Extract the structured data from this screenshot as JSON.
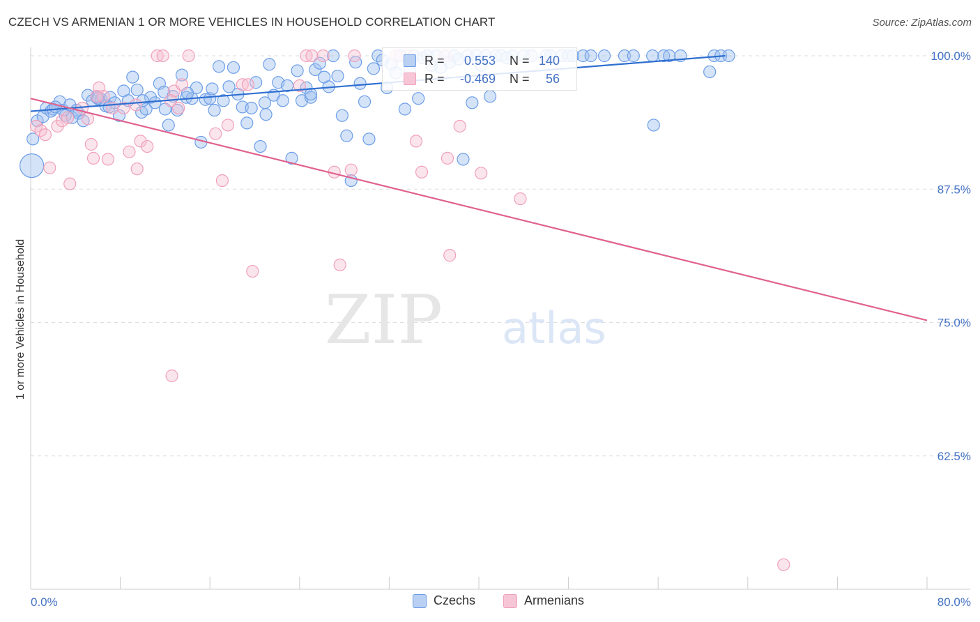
{
  "title": "CZECH VS ARMENIAN 1 OR MORE VEHICLES IN HOUSEHOLD CORRELATION CHART",
  "source": "Source: ZipAtlas.com",
  "watermark": {
    "zip": "ZIP",
    "atlas": "atlas"
  },
  "stats": [
    {
      "r_label": "R =",
      "r_value": "0.553",
      "n_label": "N =",
      "n_value": "140"
    },
    {
      "r_label": "R =",
      "r_value": "-0.469",
      "n_label": "N =",
      "n_value": "56"
    }
  ],
  "legend": [
    {
      "label": "Czechs"
    },
    {
      "label": "Armenians"
    }
  ],
  "chart_data": {
    "type": "scatter",
    "title": "CZECH VS ARMENIAN 1 OR MORE VEHICLES IN HOUSEHOLD CORRELATION CHART",
    "xlabel": "",
    "ylabel": "1 or more Vehicles in Household",
    "xlim": [
      0,
      80
    ],
    "ylim": [
      50,
      100
    ],
    "x_tick_labels": [
      "0.0%",
      "80.0%"
    ],
    "y_ticks": [
      62.5,
      75.0,
      87.5,
      100.0
    ],
    "y_tick_labels": [
      "62.5%",
      "75.0%",
      "87.5%",
      "100.0%"
    ],
    "grid": true,
    "legend_position": "bottom",
    "colors": {
      "czechs": "#6d9ee8",
      "armenians": "#f0a0bb",
      "czech_line": "#2f6fd0",
      "armenian_line": "#e0618f",
      "tick_label": "#4472c4"
    },
    "series": [
      {
        "name": "Czechs",
        "trend": [
          [
            0,
            94.8
          ],
          [
            62,
            100.0
          ]
        ],
        "points": [
          [
            0.6,
            93.9
          ],
          [
            1.1,
            94.3
          ],
          [
            1.4,
            95.1
          ],
          [
            1.8,
            94.8
          ],
          [
            2.0,
            95.0
          ],
          [
            2.6,
            95.7
          ],
          [
            2.9,
            94.9
          ],
          [
            3.1,
            94.4
          ],
          [
            3.5,
            95.4
          ],
          [
            3.7,
            94.2
          ],
          [
            4.1,
            94.9
          ],
          [
            4.3,
            94.6
          ],
          [
            4.7,
            93.9
          ],
          [
            5.1,
            96.3
          ],
          [
            5.5,
            95.8
          ],
          [
            5.9,
            96.1
          ],
          [
            6.3,
            95.9
          ],
          [
            6.7,
            95.3
          ],
          [
            7.1,
            96.1
          ],
          [
            7.5,
            95.6
          ],
          [
            7.9,
            94.4
          ],
          [
            8.3,
            96.7
          ],
          [
            8.7,
            95.8
          ],
          [
            9.1,
            98.0
          ],
          [
            9.5,
            96.8
          ],
          [
            9.9,
            94.7
          ],
          [
            10.3,
            95.0
          ],
          [
            10.7,
            96.1
          ],
          [
            11.1,
            95.6
          ],
          [
            11.5,
            97.4
          ],
          [
            11.9,
            96.6
          ],
          [
            12.3,
            93.5
          ],
          [
            12.7,
            96.2
          ],
          [
            13.1,
            94.9
          ],
          [
            13.5,
            98.2
          ],
          [
            13.9,
            96.1
          ],
          [
            14.4,
            96.0
          ],
          [
            14.8,
            97.0
          ],
          [
            15.2,
            91.9
          ],
          [
            15.6,
            95.9
          ],
          [
            16.0,
            96.0
          ],
          [
            16.4,
            94.9
          ],
          [
            16.8,
            99.0
          ],
          [
            17.2,
            95.8
          ],
          [
            17.7,
            97.1
          ],
          [
            18.1,
            98.9
          ],
          [
            18.5,
            96.4
          ],
          [
            18.9,
            95.2
          ],
          [
            19.3,
            93.7
          ],
          [
            19.7,
            95.1
          ],
          [
            20.1,
            97.5
          ],
          [
            20.5,
            91.5
          ],
          [
            20.9,
            95.6
          ],
          [
            21.3,
            99.2
          ],
          [
            21.7,
            96.3
          ],
          [
            22.1,
            97.5
          ],
          [
            22.5,
            95.8
          ],
          [
            22.9,
            97.2
          ],
          [
            23.3,
            90.4
          ],
          [
            23.8,
            98.6
          ],
          [
            24.2,
            95.8
          ],
          [
            24.6,
            97.0
          ],
          [
            25.0,
            96.1
          ],
          [
            25.4,
            98.7
          ],
          [
            25.8,
            99.3
          ],
          [
            26.2,
            98.0
          ],
          [
            26.6,
            97.1
          ],
          [
            27.0,
            100.0
          ],
          [
            27.4,
            98.1
          ],
          [
            27.8,
            94.4
          ],
          [
            28.2,
            92.5
          ],
          [
            28.6,
            88.3
          ],
          [
            29.0,
            99.4
          ],
          [
            29.4,
            97.4
          ],
          [
            29.8,
            95.7
          ],
          [
            30.2,
            92.2
          ],
          [
            30.6,
            98.8
          ],
          [
            31.0,
            100.0
          ],
          [
            31.4,
            99.6
          ],
          [
            31.8,
            97.0
          ],
          [
            32.2,
            99.2
          ],
          [
            32.6,
            98.4
          ],
          [
            33.0,
            100.0
          ],
          [
            33.4,
            95.0
          ],
          [
            33.8,
            98.6
          ],
          [
            34.2,
            100.0
          ],
          [
            34.6,
            96.0
          ],
          [
            35.0,
            99.8
          ],
          [
            35.4,
            100.0
          ],
          [
            35.8,
            99.1
          ],
          [
            36.2,
            100.0
          ],
          [
            36.6,
            98.9
          ],
          [
            37.0,
            100.0
          ],
          [
            37.4,
            99.4
          ],
          [
            37.8,
            100.0
          ],
          [
            38.2,
            99.7
          ],
          [
            38.6,
            90.3
          ],
          [
            39.0,
            100.0
          ],
          [
            39.4,
            95.6
          ],
          [
            39.8,
            100.0
          ],
          [
            40.2,
            99.1
          ],
          [
            40.6,
            100.0
          ],
          [
            41.0,
            96.2
          ],
          [
            41.5,
            100.0
          ],
          [
            42.0,
            100.0
          ],
          [
            42.5,
            99.8
          ],
          [
            43.0,
            100.0
          ],
          [
            44.0,
            100.0
          ],
          [
            44.7,
            100.0
          ],
          [
            46.0,
            100.0
          ],
          [
            46.4,
            100.0
          ],
          [
            47.4,
            100.0
          ],
          [
            48.0,
            100.0
          ],
          [
            48.4,
            100.0
          ],
          [
            49.3,
            100.0
          ],
          [
            50.0,
            100.0
          ],
          [
            51.2,
            100.0
          ],
          [
            53.0,
            100.0
          ],
          [
            53.8,
            100.0
          ],
          [
            55.5,
            100.0
          ],
          [
            56.5,
            100.0
          ],
          [
            57.0,
            100.0
          ],
          [
            58.0,
            100.0
          ],
          [
            61.0,
            100.0
          ],
          [
            61.6,
            100.0
          ],
          [
            62.3,
            100.0
          ],
          [
            60.6,
            98.5
          ],
          [
            55.6,
            93.5
          ],
          [
            25.0,
            96.4
          ],
          [
            21.0,
            94.5
          ],
          [
            16.2,
            96.9
          ],
          [
            14.0,
            96.5
          ],
          [
            12.0,
            95.0
          ],
          [
            10.0,
            95.8
          ],
          [
            7.0,
            95.2
          ],
          [
            6.0,
            96.0
          ],
          [
            2.2,
            95.2
          ],
          [
            0.2,
            92.2
          ],
          [
            0.1,
            89.7
          ]
        ]
      },
      {
        "name": "Armenians",
        "trend": [
          [
            0,
            96.0
          ],
          [
            80,
            75.2
          ]
        ],
        "points": [
          [
            0.5,
            93.4
          ],
          [
            0.9,
            93.0
          ],
          [
            1.3,
            92.6
          ],
          [
            1.7,
            89.5
          ],
          [
            2.4,
            93.4
          ],
          [
            2.8,
            93.9
          ],
          [
            3.3,
            94.2
          ],
          [
            3.5,
            88.0
          ],
          [
            4.6,
            95.1
          ],
          [
            5.1,
            94.1
          ],
          [
            5.4,
            91.7
          ],
          [
            5.6,
            90.4
          ],
          [
            6.1,
            97.0
          ],
          [
            6.5,
            96.2
          ],
          [
            6.9,
            90.3
          ],
          [
            7.3,
            95.1
          ],
          [
            8.3,
            95.1
          ],
          [
            8.8,
            91.0
          ],
          [
            9.5,
            89.4
          ],
          [
            9.8,
            92.0
          ],
          [
            10.4,
            91.5
          ],
          [
            11.3,
            100.0
          ],
          [
            11.8,
            100.0
          ],
          [
            12.8,
            96.7
          ],
          [
            13.2,
            95.1
          ],
          [
            12.5,
            95.8
          ],
          [
            14.1,
            100.0
          ],
          [
            13.5,
            97.3
          ],
          [
            16.5,
            92.7
          ],
          [
            17.1,
            88.3
          ],
          [
            17.6,
            93.5
          ],
          [
            18.9,
            97.3
          ],
          [
            19.4,
            97.3
          ],
          [
            19.8,
            79.8
          ],
          [
            24.6,
            100.0
          ],
          [
            25.1,
            100.0
          ],
          [
            26.1,
            100.0
          ],
          [
            27.1,
            89.1
          ],
          [
            27.6,
            80.4
          ],
          [
            28.6,
            89.3
          ],
          [
            28.9,
            100.0
          ],
          [
            32.6,
            100.0
          ],
          [
            33.6,
            100.0
          ],
          [
            34.4,
            92.0
          ],
          [
            34.9,
            89.1
          ],
          [
            37.0,
            100.0
          ],
          [
            37.2,
            90.4
          ],
          [
            37.4,
            81.3
          ],
          [
            38.3,
            93.4
          ],
          [
            40.2,
            89.0
          ],
          [
            43.7,
            86.6
          ],
          [
            67.2,
            52.3
          ],
          [
            12.6,
            70.0
          ],
          [
            5.9,
            96.2
          ],
          [
            9.4,
            95.4
          ],
          [
            24.0,
            97.2
          ]
        ]
      }
    ]
  }
}
